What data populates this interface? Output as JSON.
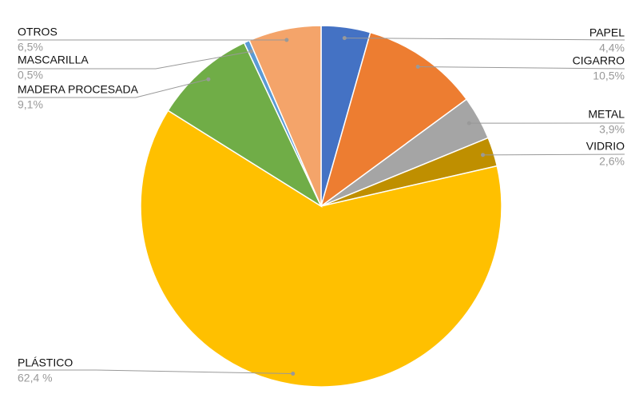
{
  "chart_data": {
    "type": "pie",
    "categories": [
      "PAPEL",
      "CIGARRO",
      "METAL",
      "VIDRIO",
      "PLÁSTICO",
      "MADERA PROCESADA",
      "MASCARILLA",
      "OTROS"
    ],
    "values": [
      4.4,
      10.5,
      3.9,
      2.6,
      62.4,
      9.1,
      0.5,
      6.5
    ],
    "value_labels": [
      "4,4%",
      "10,5%",
      "3,9%",
      "2,6%",
      "62,4 %",
      "9,1%",
      "0,5%",
      "6,5%"
    ],
    "colors": [
      "#4472c4",
      "#ed7d31",
      "#a5a5a5",
      "#bf8f00",
      "#ffc000",
      "#70ad47",
      "#5b9bd5",
      "#f4a46a"
    ]
  }
}
